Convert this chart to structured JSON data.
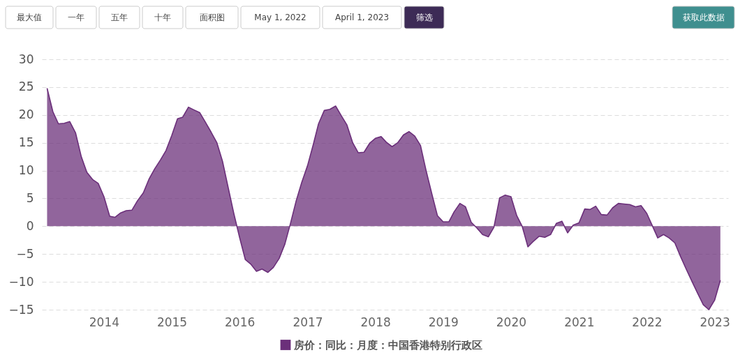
{
  "chart_data": {
    "type": "area",
    "annotations": [
      "最大值",
      "一年",
      "五年",
      "十年",
      "面积图",
      "May 1, 2022",
      "April 1, 2023",
      "筛选",
      "获取此数据"
    ],
    "x": [
      "2013-03",
      "2013-04",
      "2013-05",
      "2013-06",
      "2013-07",
      "2013-08",
      "2013-09",
      "2013-10",
      "2013-11",
      "2013-12",
      "2014-01",
      "2014-02",
      "2014-03",
      "2014-04",
      "2014-05",
      "2014-06",
      "2014-07",
      "2014-08",
      "2014-09",
      "2014-10",
      "2014-11",
      "2014-12",
      "2015-01",
      "2015-02",
      "2015-03",
      "2015-04",
      "2015-05",
      "2015-06",
      "2015-07",
      "2015-08",
      "2015-09",
      "2015-10",
      "2015-11",
      "2015-12",
      "2016-01",
      "2016-02",
      "2016-03",
      "2016-04",
      "2016-05",
      "2016-06",
      "2016-07",
      "2016-08",
      "2016-09",
      "2016-10",
      "2016-11",
      "2016-12",
      "2017-01",
      "2017-02",
      "2017-03",
      "2017-04",
      "2017-05",
      "2017-06",
      "2017-07",
      "2017-08",
      "2017-09",
      "2017-10",
      "2017-11",
      "2017-12",
      "2018-01",
      "2018-02",
      "2018-03",
      "2018-04",
      "2018-05",
      "2018-06",
      "2018-07",
      "2018-08",
      "2018-09",
      "2018-10",
      "2018-11",
      "2018-12",
      "2019-01",
      "2019-02",
      "2019-03",
      "2019-04",
      "2019-05",
      "2019-06",
      "2019-07",
      "2019-08",
      "2019-09",
      "2019-10",
      "2019-11",
      "2019-12",
      "2020-01",
      "2020-02",
      "2020-03",
      "2020-04",
      "2020-05",
      "2020-06",
      "2020-07",
      "2020-08",
      "2020-09",
      "2020-10",
      "2020-11",
      "2020-12",
      "2021-01",
      "2021-02",
      "2021-03",
      "2021-04",
      "2021-05",
      "2021-06",
      "2021-07",
      "2021-08",
      "2021-09",
      "2021-10",
      "2021-11",
      "2021-12",
      "2022-01",
      "2022-02",
      "2022-03",
      "2022-04",
      "2022-05",
      "2022-06",
      "2022-07",
      "2022-08",
      "2022-09",
      "2022-10",
      "2022-11",
      "2022-12",
      "2023-01",
      "2023-02"
    ],
    "series": [
      {
        "name": "房价：同比：月度：中国香港特别行政区",
        "color": "#6b2f7a",
        "values": [
          24.8,
          20.6,
          18.4,
          18.5,
          18.8,
          16.8,
          12.5,
          9.7,
          8.4,
          7.7,
          5.3,
          1.8,
          1.6,
          2.4,
          2.8,
          2.9,
          4.6,
          6.0,
          8.5,
          10.3,
          11.9,
          13.6,
          16.3,
          19.3,
          19.6,
          21.4,
          20.9,
          20.4,
          18.7,
          16.9,
          15.0,
          11.7,
          6.9,
          2.3,
          -2.0,
          -6.0,
          -6.8,
          -8.1,
          -7.7,
          -8.3,
          -7.4,
          -5.8,
          -3.2,
          0.5,
          4.6,
          7.9,
          10.9,
          14.7,
          18.4,
          20.8,
          21.0,
          21.6,
          19.9,
          18.2,
          15.0,
          13.2,
          13.3,
          14.9,
          15.8,
          16.1,
          15.1,
          14.3,
          15.0,
          16.4,
          17.0,
          16.2,
          14.5,
          10.0,
          5.8,
          1.9,
          0.8,
          0.8,
          2.6,
          4.1,
          3.5,
          0.7,
          -0.3,
          -1.5,
          -1.9,
          -0.2,
          5.1,
          5.6,
          5.3,
          1.9,
          0.0,
          -3.7,
          -2.7,
          -1.8,
          -2.0,
          -1.5,
          0.5,
          0.9,
          -1.2,
          0.2,
          0.6,
          3.1,
          3.0,
          3.6,
          2.1,
          2.0,
          3.3,
          4.1,
          4.0,
          3.9,
          3.5,
          3.7,
          2.3,
          0.0,
          -2.1,
          -1.5,
          -2.1,
          -3.0,
          -5.4,
          -7.7,
          -9.9,
          -12.0,
          -14.1,
          -15.0,
          -13.3,
          -9.7
        ]
      }
    ],
    "xlim": [
      "2013-02-01",
      "2023-03-15"
    ],
    "xticks": [
      "2014",
      "2015",
      "2016",
      "2017",
      "2018",
      "2019",
      "2020",
      "2021",
      "2022",
      "2023"
    ],
    "ylim": [
      -15,
      30
    ],
    "yticks": [
      -15,
      -10,
      -5,
      0,
      5,
      10,
      15,
      20,
      25,
      30
    ],
    "grid": "y",
    "legend": "bottom"
  }
}
